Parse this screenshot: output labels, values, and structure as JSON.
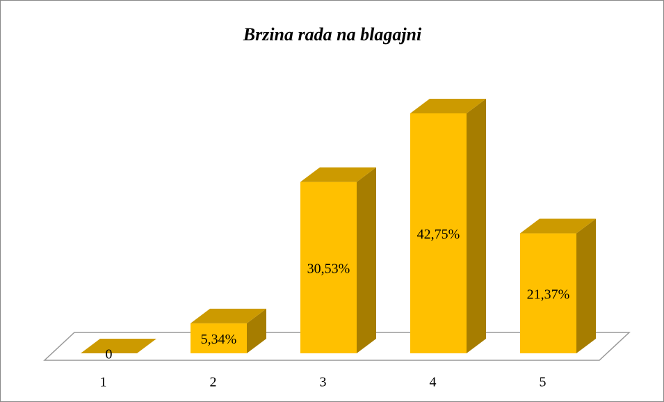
{
  "chart_data": {
    "type": "bar3d",
    "title": "Brzina rada na blagajni",
    "categories": [
      "1",
      "2",
      "3",
      "4",
      "5"
    ],
    "values": [
      0,
      5.34,
      30.53,
      42.75,
      21.37
    ],
    "value_labels": [
      "0",
      "5,34%",
      "30,53%",
      "42,75%",
      "21,37%"
    ],
    "color": "#ffc000"
  }
}
